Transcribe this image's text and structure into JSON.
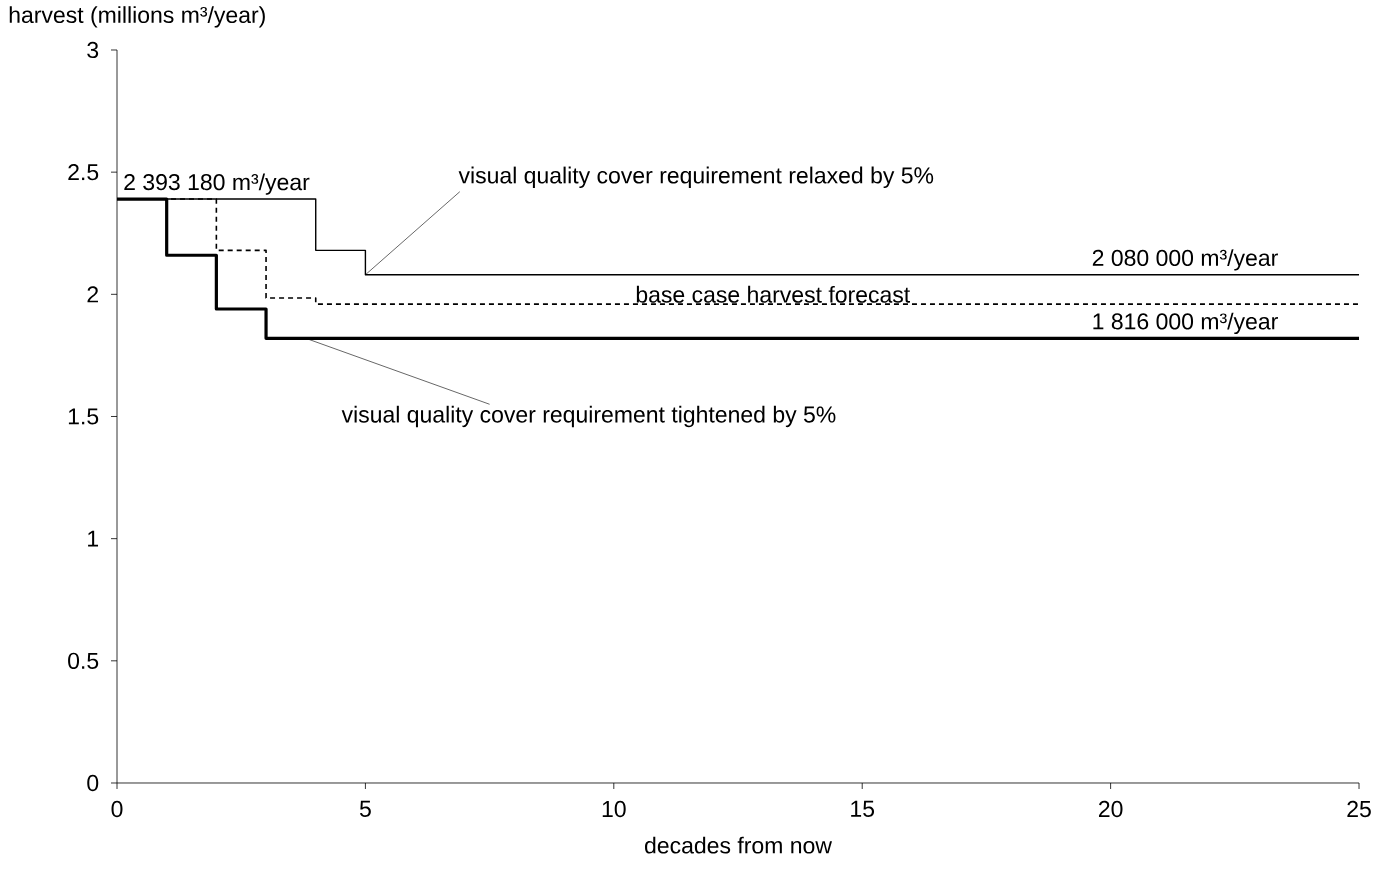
{
  "chart_data": {
    "type": "step",
    "xlabel": "decades from now",
    "ylabel": "harvest (millions m³/year)",
    "xlim": [
      0,
      25
    ],
    "xticks": [
      0,
      5,
      10,
      15,
      20,
      25
    ],
    "ylim": [
      0,
      3
    ],
    "yticks": [
      0,
      0.5,
      1,
      1.5,
      2,
      2.5,
      3
    ],
    "grid": false,
    "marker": "none",
    "series": [
      {
        "name": "visual quality cover requirement relaxed by 5%",
        "color": "#000000",
        "line_style": "solid",
        "x": [
          0,
          1,
          2,
          3,
          4,
          5,
          25
        ],
        "values": [
          2.39,
          2.39,
          2.39,
          2.39,
          2.18,
          2.08,
          2.08
        ]
      },
      {
        "name": "base case harvest forecast",
        "color": "#000000",
        "line_style": "dashed",
        "x": [
          0,
          1,
          2,
          3,
          4,
          5,
          25
        ],
        "values": [
          2.39,
          2.39,
          2.18,
          1.985,
          1.96,
          1.96,
          1.96
        ]
      },
      {
        "name": "visual quality cover requirement tightened by 5%",
        "color": "#000000",
        "line_style": "solid",
        "x": [
          0,
          1,
          2,
          3,
          4,
          5,
          25
        ],
        "values": [
          2.39,
          2.16,
          1.94,
          1.82,
          1.82,
          1.82,
          1.82
        ]
      }
    ],
    "annotations": [
      "2 393 180 m³/year",
      "2 080 000 m³/year",
      "1 816 000 m³/year"
    ]
  }
}
